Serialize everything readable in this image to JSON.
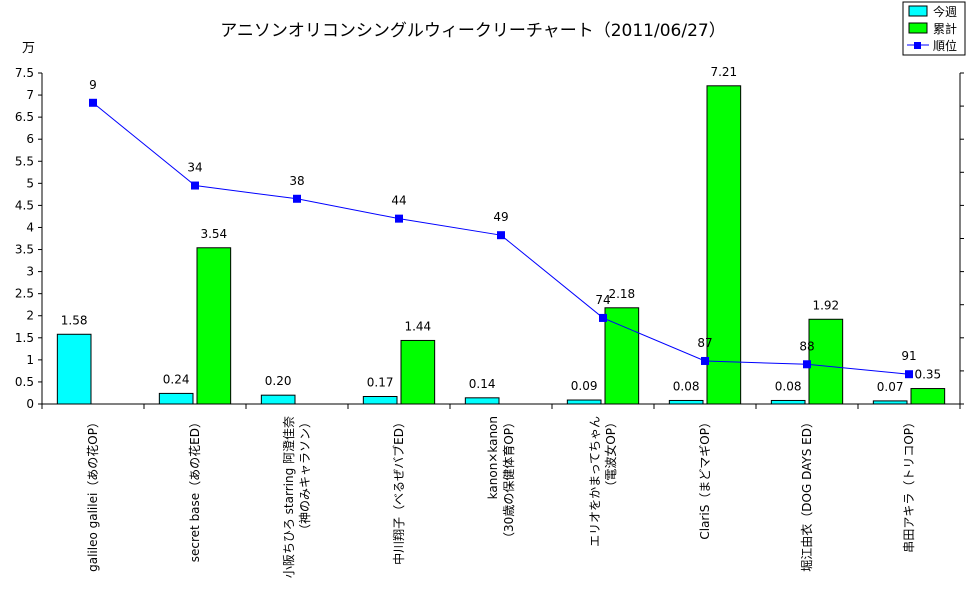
{
  "chart_data": {
    "type": "bar",
    "title": "アニソンオリコンシングルウィークリーチャート（2011/06/27）",
    "y_unit": "万",
    "ylim": [
      0,
      7.5
    ],
    "y_ticks": [
      "0",
      "0.5",
      "1",
      "1.5",
      "2",
      "2.5",
      "3",
      "3.5",
      "4",
      "4.5",
      "5",
      "5.5",
      "6",
      "6.5",
      "7",
      "7.5"
    ],
    "rank_axis": {
      "min": 0,
      "max": 100,
      "reversed": true
    },
    "categories": [
      [
        "galileo galilei（あの花OP）"
      ],
      [
        "secret base（あの花ED）"
      ],
      [
        "小阪ちひろ starring 阿澄佳奈",
        "（神のみキャラソン）"
      ],
      [
        "中川翔子（べるぜバブED）"
      ],
      [
        "kanon×kanon",
        "（30歳の保健体育OP）"
      ],
      [
        "エリオをかまってちゃん",
        "（電波女OP）"
      ],
      [
        "ClariS（まどマギOP）"
      ],
      [
        "堀江由衣（DOG DAYS ED）"
      ],
      [
        "串田アキラ（トリコOP）"
      ]
    ],
    "series": [
      {
        "name": "今週",
        "type": "bar",
        "color": "#00FFFF",
        "values": [
          1.58,
          0.24,
          0.2,
          0.17,
          0.14,
          0.09,
          0.08,
          0.08,
          0.07
        ],
        "labels": [
          "1.58",
          "0.24",
          "0.20",
          "0.17",
          "0.14",
          "0.09",
          "0.08",
          "0.08",
          "0.07"
        ]
      },
      {
        "name": "累計",
        "type": "bar",
        "color": "#00FF00",
        "values": [
          null,
          3.54,
          null,
          1.44,
          null,
          2.18,
          7.21,
          1.92,
          0.35
        ],
        "labels": [
          "",
          "3.54",
          "",
          "1.44",
          "",
          "2.18",
          "7.21",
          "1.92",
          "0.35"
        ]
      },
      {
        "name": "順位",
        "type": "line",
        "color": "#0000FF",
        "values": [
          9,
          34,
          38,
          44,
          49,
          74,
          87,
          88,
          91
        ],
        "labels": [
          "9",
          "34",
          "38",
          "44",
          "49",
          "74",
          "87",
          "88",
          "91"
        ]
      }
    ],
    "legend_position": "top-right",
    "grid": false
  }
}
